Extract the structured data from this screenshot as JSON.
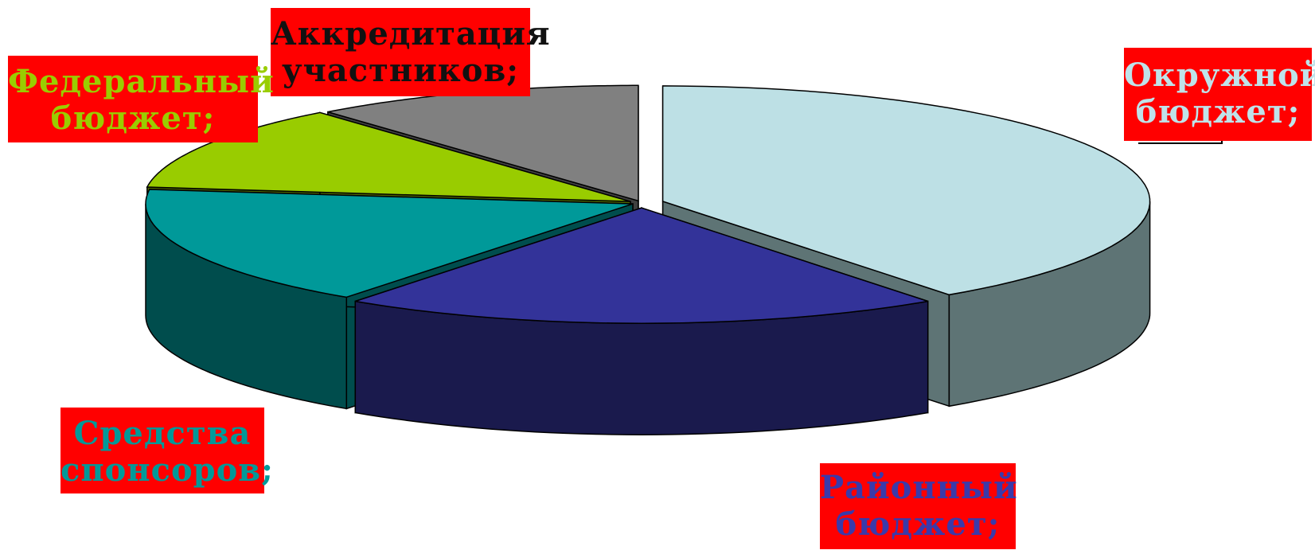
{
  "chart_data": {
    "type": "pie",
    "style": "3d-exploded",
    "title": "",
    "slices": [
      {
        "label_line1": "Окружной",
        "label_line2": "бюджет;",
        "value": 40,
        "color": "#bde0e5",
        "side_color": "#5e7475",
        "label_color": "#bfe3ea"
      },
      {
        "label_line1": "Районный",
        "label_line2": "бюджет;",
        "value": 20,
        "color": "#333399",
        "side_color": "#1a1a4d",
        "label_color": "#3a3aaa"
      },
      {
        "label_line1": "Средства",
        "label_line2": "спонсоров;",
        "value": 17,
        "color": "#009999",
        "side_color": "#004d4d",
        "label_color": "#009999"
      },
      {
        "label_line1": "Федеральный",
        "label_line2": "бюджет;",
        "value": 12,
        "color": "#99cc00",
        "side_color": "#4d6600",
        "label_color": "#9acd00"
      },
      {
        "label_line1": "Аккредитация",
        "label_line2": "участников;",
        "value": 11,
        "color": "#808080",
        "side_color": "#404040",
        "label_color": "#111111"
      }
    ],
    "label_box_color": "#ff0000",
    "legend": "none"
  }
}
